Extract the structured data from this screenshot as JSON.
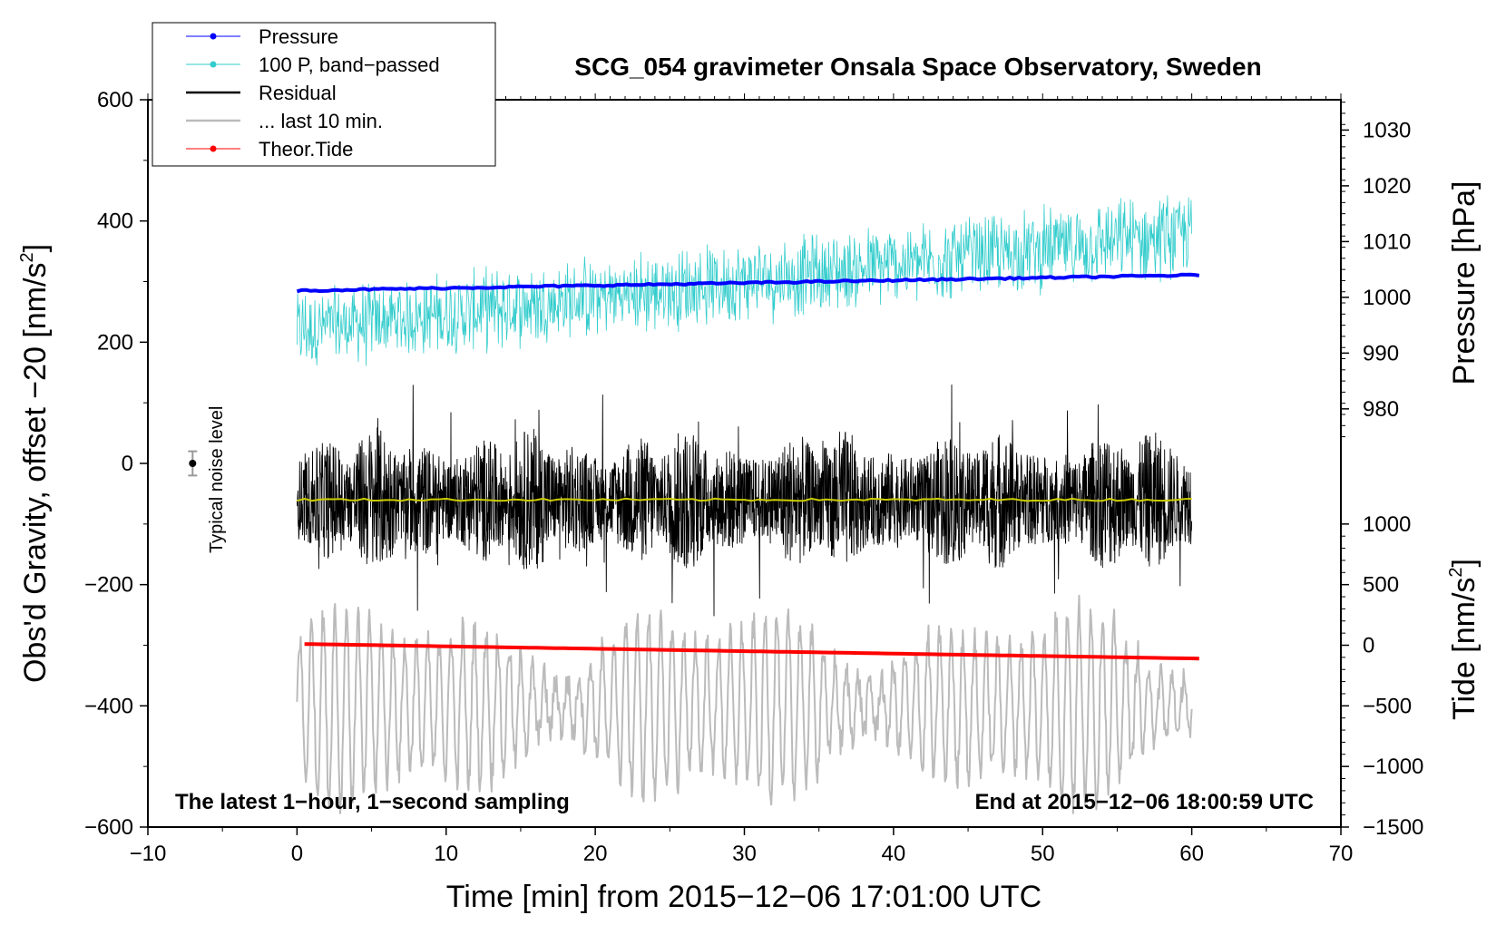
{
  "chart_data": {
    "type": "line",
    "title": "SCG_054 gravimeter Onsala Space Observatory, Sweden",
    "xlabel": "Time [min] from 2015−12−06 17:01:00 UTC",
    "ylabel_left": "Obs'd Gravity, offset −20 [nm/s",
    "ylabel_left_sup": "2",
    "ylabel_left_close": "]",
    "ylabel_right_pressure": "Pressure [hPa]",
    "ylabel_right_tide": "Tide [nm/s",
    "ylabel_right_tide_sup": "2",
    "ylabel_right_tide_close": "]",
    "xlim": [
      -10,
      70
    ],
    "ylim_left": [
      -600,
      600
    ],
    "x_ticks": [
      {
        "v": -10,
        "label": "−10"
      },
      {
        "v": 0,
        "label": "0"
      },
      {
        "v": 10,
        "label": "10"
      },
      {
        "v": 20,
        "label": "20"
      },
      {
        "v": 30,
        "label": "30"
      },
      {
        "v": 40,
        "label": "40"
      },
      {
        "v": 50,
        "label": "50"
      },
      {
        "v": 60,
        "label": "60"
      },
      {
        "v": 70,
        "label": "70"
      }
    ],
    "y_ticks_left": [
      {
        "v": 600,
        "label": "600"
      },
      {
        "v": 400,
        "label": "400"
      },
      {
        "v": 200,
        "label": "200"
      },
      {
        "v": 0,
        "label": "0"
      },
      {
        "v": -200,
        "label": "−200"
      },
      {
        "v": -400,
        "label": "−400"
      },
      {
        "v": -600,
        "label": "−600"
      }
    ],
    "pressure_axis": {
      "ticks": [
        {
          "v": 1030,
          "label": "1030"
        },
        {
          "v": 1020,
          "label": "1020"
        },
        {
          "v": 1010,
          "label": "1010"
        },
        {
          "v": 1000,
          "label": "1000"
        },
        {
          "v": 990,
          "label": "990"
        },
        {
          "v": 980,
          "label": "980"
        }
      ],
      "map": {
        "v1": 1030,
        "g1": 550,
        "v2": 980,
        "g2": 90
      }
    },
    "tide_axis": {
      "ticks": [
        {
          "v": 1000,
          "label": "1000"
        },
        {
          "v": 500,
          "label": "500"
        },
        {
          "v": 0,
          "label": "0"
        },
        {
          "v": -500,
          "label": "−500"
        },
        {
          "v": -1000,
          "label": "−1000"
        },
        {
          "v": -1500,
          "label": "−1500"
        }
      ],
      "map": {
        "v1": 1000,
        "g1": -100,
        "v2": -1500,
        "g2": -600
      }
    },
    "series": [
      {
        "name": "Pressure",
        "color": "#0000ff",
        "unit": "hPa",
        "x_range": [
          0,
          60.5
        ],
        "y_start": 1001.2,
        "y_end": 1004.0
      },
      {
        "name": "100 P, band−passed",
        "color": "#33cccc",
        "x_range": [
          0,
          60
        ],
        "trend_start": 220,
        "trend_end": 380,
        "noise_amplitude": 55
      },
      {
        "name": "Residual",
        "color": "#000000",
        "x_range": [
          0,
          60
        ],
        "center": -60,
        "noise_amplitude": 120
      },
      {
        "name": "Residual mean",
        "color": "#cccc00",
        "x_range": [
          0,
          60
        ],
        "value": -60
      },
      {
        "name": "... last 10 min.",
        "color": "#bbbbbb",
        "x_range": [
          0,
          60
        ],
        "center": -400,
        "amplitude_range": [
          40,
          170
        ]
      },
      {
        "name": "Theor.Tide",
        "color": "#ff0000",
        "unit": "nm/s^2",
        "x_range": [
          0.5,
          60.5
        ],
        "y_start": 10,
        "y_end": -110
      }
    ],
    "legend": [
      {
        "label": "Pressure",
        "color": "#0000ff",
        "marker": true,
        "line_width": 1
      },
      {
        "label": "100 P, band−passed",
        "color": "#33cccc",
        "marker": true,
        "line_width": 1
      },
      {
        "label": "Residual",
        "color": "#000000",
        "marker": false,
        "line_width": 2.5
      },
      {
        "label": "... last 10 min.",
        "color": "#bbbbbb",
        "marker": false,
        "line_width": 2.5
      },
      {
        "label": "Theor.Tide",
        "color": "#ff0000",
        "marker": true,
        "line_width": 1
      }
    ],
    "noise_level": {
      "label": "Typical noise level",
      "x": -7,
      "y": 0,
      "err": 20
    },
    "annotation_left": "The latest 1−hour, 1−second sampling",
    "annotation_right": "End at 2015−12−06 18:00:59 UTC"
  }
}
